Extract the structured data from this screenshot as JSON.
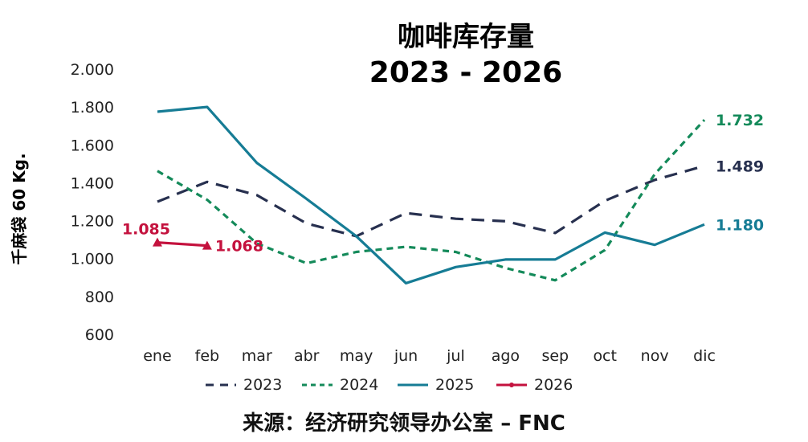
{
  "chart_data": {
    "type": "line",
    "title": "咖啡库存量",
    "subtitle": "2023 - 2026",
    "ylabel": "千麻袋 60 Kg.",
    "xlabel": "",
    "categories": [
      "ene",
      "feb",
      "mar",
      "abr",
      "may",
      "jun",
      "jul",
      "ago",
      "sep",
      "oct",
      "nov",
      "dic"
    ],
    "ylim": [
      600,
      2000
    ],
    "yticks": [
      600,
      800,
      1000,
      1200,
      1400,
      1600,
      1800,
      2000
    ],
    "ytick_labels": [
      "600",
      "800",
      "1.000",
      "1.200",
      "1.400",
      "1.600",
      "1.800",
      "2.000"
    ],
    "grid": false,
    "legend_position": "bottom",
    "series": [
      {
        "name": "2023",
        "color": "#27304f",
        "style": "dashed",
        "values": [
          1300,
          1405,
          1335,
          1185,
          1118,
          1240,
          1210,
          1197,
          1135,
          1305,
          1415,
          1489
        ],
        "end_label": "1.489"
      },
      {
        "name": "2024",
        "color": "#148a5a",
        "style": "dotted",
        "values": [
          1462,
          1310,
          1080,
          975,
          1035,
          1062,
          1035,
          950,
          885,
          1045,
          1445,
          1732
        ],
        "end_label": "1.732"
      },
      {
        "name": "2025",
        "color": "#167c95",
        "style": "solid",
        "values": [
          1775,
          1800,
          1505,
          1315,
          1118,
          870,
          955,
          995,
          995,
          1137,
          1072,
          1180
        ],
        "end_label": "1.180"
      },
      {
        "name": "2026",
        "color": "#c4123e",
        "style": "solid-marker",
        "values": [
          1085,
          1068,
          null,
          null,
          null,
          null,
          null,
          null,
          null,
          null,
          null,
          null
        ],
        "start_label": "1.085",
        "end_label": "1.068"
      }
    ]
  },
  "source": "来源：经济研究领导办公室 – FNC"
}
